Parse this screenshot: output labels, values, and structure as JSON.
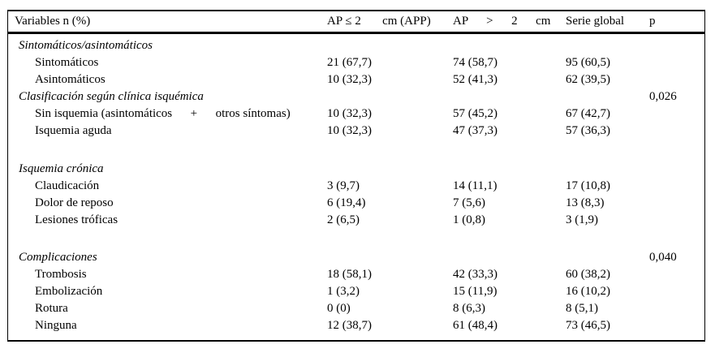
{
  "header": {
    "variables": "Variables n (%)",
    "ap_le2": "AP ≤ 2       cm (APP)",
    "ap_gt2": "AP      >      2      cm",
    "serie": "Serie global",
    "p": "p"
  },
  "rows": [
    {
      "label": "Sintomáticos/asintomáticos",
      "c1": "",
      "c2": "",
      "c3": "",
      "p": ""
    },
    {
      "label": "Sintomáticos",
      "c1": "21 (67,7)",
      "c2": "74 (58,7)",
      "c3": "95 (60,5)",
      "p": ""
    },
    {
      "label": "Asintomáticos",
      "c1": "10 (32,3)",
      "c2": "52 (41,3)",
      "c3": "62 (39,5)",
      "p": ""
    },
    {
      "label": "Clasificación según clínica isquémica",
      "c1": "",
      "c2": "",
      "c3": "",
      "p": "0,026"
    },
    {
      "label": "Sin isquemia (asintomáticos      +      otros síntomas)",
      "c1": "10 (32,3)",
      "c2": "57 (45,2)",
      "c3": "67 (42,7)",
      "p": ""
    },
    {
      "label": "Isquemia aguda",
      "c1": "10 (32,3)",
      "c2": "47 (37,3)",
      "c3": "57 (36,3)",
      "p": ""
    },
    {
      "label": "Isquemia crónica",
      "c1": "",
      "c2": "",
      "c3": "",
      "p": ""
    },
    {
      "label": "Claudicación",
      "c1": "3 (9,7)",
      "c2": "14 (11,1)",
      "c3": "17 (10,8)",
      "p": ""
    },
    {
      "label": "Dolor de reposo",
      "c1": "6 (19,4)",
      "c2": "7 (5,6)",
      "c3": "13 (8,3)",
      "p": ""
    },
    {
      "label": "Lesiones tróficas",
      "c1": "2 (6,5)",
      "c2": "1 (0,8)",
      "c3": "3 (1,9)",
      "p": ""
    },
    {
      "label": "Complicaciones",
      "c1": "",
      "c2": "",
      "c3": "",
      "p": "0,040"
    },
    {
      "label": "Trombosis",
      "c1": "18 (58,1)",
      "c2": "42 (33,3)",
      "c3": "60 (38,2)",
      "p": ""
    },
    {
      "label": "Embolización",
      "c1": "1 (3,2)",
      "c2": "15 (11,9)",
      "c3": "16 (10,2)",
      "p": ""
    },
    {
      "label": "Rotura",
      "c1": "0 (0)",
      "c2": "8 (6,3)",
      "c3": "8 (5,1)",
      "p": ""
    },
    {
      "label": "Ninguna",
      "c1": "12 (38,7)",
      "c2": "61 (48,4)",
      "c3": "73 (46,5)",
      "p": ""
    }
  ]
}
